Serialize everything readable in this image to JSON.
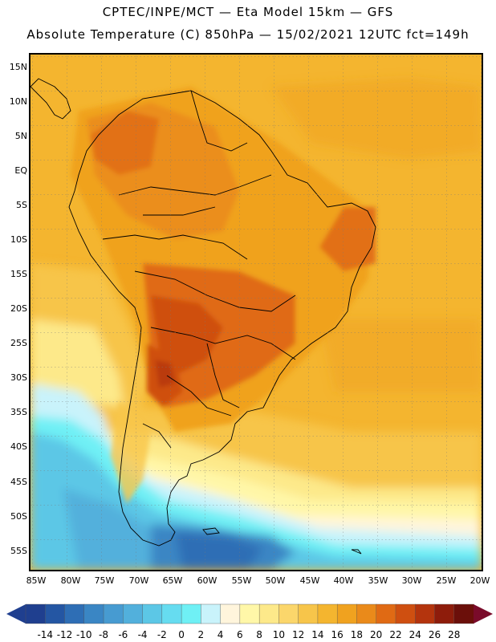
{
  "title": {
    "line1": "CPTEC/INPE/MCT —  Eta Model 15km — GFS",
    "line2": "Absolute Temperature (C) 850hPa — 15/02/2021 12UTC fct=149h"
  },
  "map": {
    "latitude_labels": [
      "15N",
      "10N",
      "5N",
      "EQ",
      "5S",
      "10S",
      "15S",
      "20S",
      "25S",
      "30S",
      "35S",
      "40S",
      "45S",
      "50S",
      "55S"
    ],
    "longitude_labels": [
      "85W",
      "80W",
      "75W",
      "70W",
      "65W",
      "60W",
      "55W",
      "50W",
      "45W",
      "40W",
      "35W",
      "30W",
      "25W",
      "20W"
    ],
    "extent": {
      "lon_min": -86,
      "lon_max": -20,
      "lat_min": -58,
      "lat_max": 16
    }
  },
  "legend": {
    "levels": [
      "-14",
      "-12",
      "-10",
      "-8",
      "-6",
      "-4",
      "-2",
      "0",
      "2",
      "4",
      "6",
      "8",
      "10",
      "12",
      "14",
      "16",
      "18",
      "20",
      "22",
      "24",
      "26",
      "28"
    ],
    "colors": [
      "#1f3f8f",
      "#2456a3",
      "#2e6eb5",
      "#3a86c4",
      "#479bd1",
      "#52b0dc",
      "#5cc7e6",
      "#66dcf0",
      "#6ff0f5",
      "#c9f3fb",
      "#fff5dc",
      "#fff7a8",
      "#fde98a",
      "#fbd66b",
      "#f7c54a",
      "#f4b52f",
      "#f0a21f",
      "#ea8a1a",
      "#e06a14",
      "#cf4f10",
      "#b4340d",
      "#8e1c0b",
      "#6b0f0a"
    ],
    "under_color": "#1f3f8f",
    "over_color": "#7a0b2a"
  },
  "colors": {
    "ocean_warm": "#f4b52f",
    "ocean_mid": "#f7c54a",
    "ocean_cool": "#fde98a",
    "hot_land": "#e06a14",
    "very_hot": "#cf4f10",
    "cold_water": "#5cc7e6",
    "very_cold": "#2e6eb5"
  }
}
